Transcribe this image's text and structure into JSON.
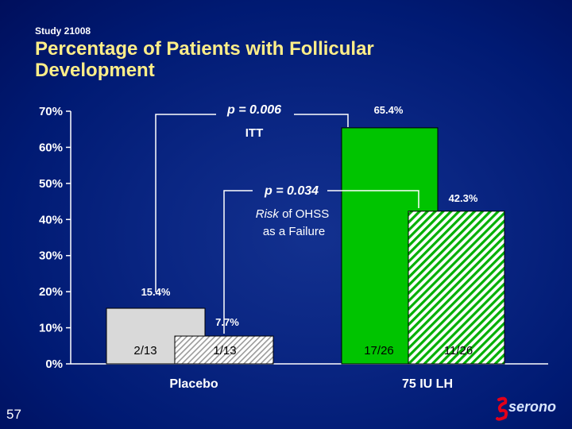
{
  "header": {
    "study": "Study 21008",
    "title": "Percentage of Patients with Follicular Development"
  },
  "slide_number": "57",
  "logo": {
    "text": "serono",
    "icon": "serono-logo-icon",
    "color": "#e2001a"
  },
  "colors": {
    "placebo_itt": "#d9d9d9",
    "lh_itt": "#00c400",
    "text": "#ffffff",
    "background": "#00186a"
  },
  "annotations": {
    "p_itt": "p = 0.006",
    "itt_label": "ITT",
    "p_ohss": "p = 0.034",
    "ohss_label_line1_italic": "Risk",
    "ohss_label_line1_rest": " of OHSS",
    "ohss_label_line2": "as a Failure"
  },
  "chart_data": {
    "type": "bar",
    "categories": [
      "Placebo",
      "75 IU LH"
    ],
    "series": [
      {
        "name": "ITT",
        "values": [
          15.4,
          65.4
        ],
        "value_labels": [
          "15.4%",
          "65.4%"
        ],
        "counts": [
          "2/13",
          "17/26"
        ],
        "fill": "solid"
      },
      {
        "name": "Risk of OHSS as a Failure",
        "values": [
          7.7,
          42.3
        ],
        "value_labels": [
          "7.7%",
          "42.3%"
        ],
        "counts": [
          "1/13",
          "11/26"
        ],
        "fill": "hatched"
      }
    ],
    "yticks": [
      "0%",
      "10%",
      "20%",
      "30%",
      "40%",
      "50%",
      "60%",
      "70%"
    ],
    "ylim": [
      0,
      70
    ],
    "grid": false,
    "legend": "none"
  }
}
